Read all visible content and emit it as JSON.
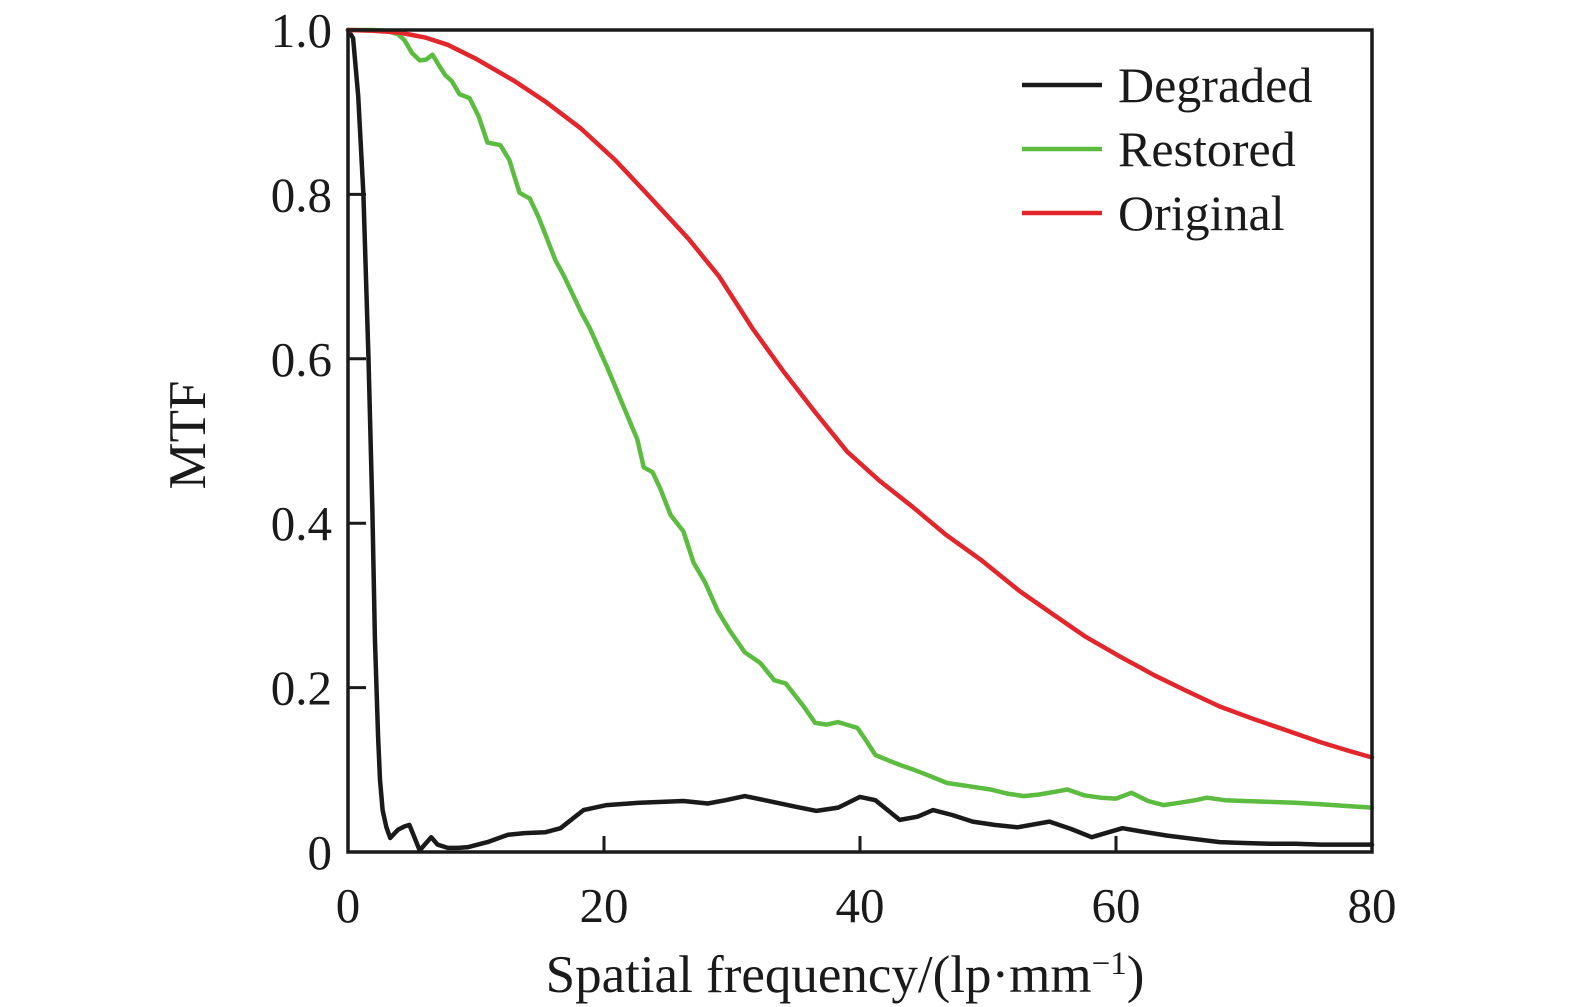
{
  "figure": {
    "background": "#ffffff",
    "axis_color": "#1a1a1a"
  },
  "chart_data": {
    "type": "line",
    "title": "",
    "xlabel": "Spatial frequency/(lp·mm⁻¹)",
    "xlabel_parts": {
      "main": "Spatial frequency/(lp·mm",
      "sup": "−1",
      "close": ")"
    },
    "ylabel": "MTF",
    "xlim": [
      0,
      80
    ],
    "ylim": [
      0,
      1.0
    ],
    "xticks": [
      0,
      20,
      40,
      60,
      80
    ],
    "xtick_labels": [
      "0",
      "20",
      "40",
      "60",
      "80"
    ],
    "yticks": [
      0,
      0.2,
      0.4,
      0.6,
      0.8,
      1.0
    ],
    "ytick_labels": [
      "0",
      "0.2",
      "0.4",
      "0.6",
      "0.8",
      "1.0"
    ],
    "grid": false,
    "legend_position": "top-right",
    "series": [
      {
        "name": "Degraded",
        "color": "#1a1a1a",
        "points": [
          [
            0,
            1.0
          ],
          [
            0.4,
            0.99
          ],
          [
            0.8,
            0.92
          ],
          [
            1.2,
            0.8
          ],
          [
            1.6,
            0.6
          ],
          [
            1.9,
            0.42
          ],
          [
            2.1,
            0.26
          ],
          [
            2.35,
            0.14
          ],
          [
            2.5,
            0.088
          ],
          [
            2.7,
            0.051
          ],
          [
            3.0,
            0.03
          ],
          [
            3.3,
            0.017
          ],
          [
            3.9,
            0.027
          ],
          [
            4.4,
            0.031
          ],
          [
            4.8,
            0.033
          ],
          [
            5.6,
            0.002
          ],
          [
            6.5,
            0.018
          ],
          [
            7.0,
            0.009
          ],
          [
            7.8,
            0.005
          ],
          [
            8.6,
            0.005
          ],
          [
            9.4,
            0.006
          ],
          [
            10.9,
            0.012
          ],
          [
            12.5,
            0.021
          ],
          [
            13.8,
            0.023
          ],
          [
            15.4,
            0.024
          ],
          [
            16.6,
            0.029
          ],
          [
            18.4,
            0.051
          ],
          [
            20.2,
            0.057
          ],
          [
            22.8,
            0.06
          ],
          [
            24.5,
            0.061
          ],
          [
            26.2,
            0.062
          ],
          [
            28.1,
            0.059
          ],
          [
            29.5,
            0.063
          ],
          [
            31.0,
            0.068
          ],
          [
            33.2,
            0.061
          ],
          [
            35.0,
            0.055
          ],
          [
            36.6,
            0.05
          ],
          [
            38.3,
            0.054
          ],
          [
            40.0,
            0.067
          ],
          [
            41.2,
            0.063
          ],
          [
            43.1,
            0.039
          ],
          [
            44.5,
            0.043
          ],
          [
            45.7,
            0.051
          ],
          [
            47.2,
            0.045
          ],
          [
            48.8,
            0.037
          ],
          [
            50.5,
            0.033
          ],
          [
            52.3,
            0.03
          ],
          [
            54.8,
            0.037
          ],
          [
            56.5,
            0.028
          ],
          [
            58.1,
            0.018
          ],
          [
            60.5,
            0.029
          ],
          [
            62.0,
            0.025
          ],
          [
            64.0,
            0.02
          ],
          [
            66.0,
            0.016
          ],
          [
            68.1,
            0.012
          ],
          [
            70.0,
            0.011
          ],
          [
            72.0,
            0.01
          ],
          [
            74.0,
            0.01
          ],
          [
            76.0,
            0.009
          ],
          [
            78.0,
            0.009
          ],
          [
            80.0,
            0.009
          ]
        ]
      },
      {
        "name": "Restored",
        "color": "#5bbc3f",
        "points": [
          [
            0,
            1.0
          ],
          [
            2.0,
            1.0
          ],
          [
            3.0,
            0.999
          ],
          [
            3.9,
            0.995
          ],
          [
            4.4,
            0.988
          ],
          [
            5.0,
            0.972
          ],
          [
            5.6,
            0.963
          ],
          [
            6.1,
            0.964
          ],
          [
            6.6,
            0.97
          ],
          [
            7.1,
            0.957
          ],
          [
            7.6,
            0.945
          ],
          [
            8.1,
            0.938
          ],
          [
            8.7,
            0.922
          ],
          [
            9.5,
            0.917
          ],
          [
            10.2,
            0.895
          ],
          [
            10.9,
            0.863
          ],
          [
            11.9,
            0.86
          ],
          [
            12.6,
            0.842
          ],
          [
            13.4,
            0.802
          ],
          [
            14.2,
            0.795
          ],
          [
            14.9,
            0.772
          ],
          [
            16.2,
            0.72
          ],
          [
            16.9,
            0.7
          ],
          [
            18.2,
            0.657
          ],
          [
            18.9,
            0.637
          ],
          [
            20.3,
            0.588
          ],
          [
            21.5,
            0.543
          ],
          [
            22.6,
            0.502
          ],
          [
            23.1,
            0.468
          ],
          [
            23.8,
            0.462
          ],
          [
            24.4,
            0.442
          ],
          [
            25.2,
            0.41
          ],
          [
            26.2,
            0.39
          ],
          [
            27.0,
            0.352
          ],
          [
            27.9,
            0.328
          ],
          [
            28.9,
            0.293
          ],
          [
            29.8,
            0.27
          ],
          [
            31.0,
            0.243
          ],
          [
            32.2,
            0.23
          ],
          [
            33.3,
            0.209
          ],
          [
            34.2,
            0.205
          ],
          [
            35.6,
            0.177
          ],
          [
            36.5,
            0.157
          ],
          [
            37.4,
            0.155
          ],
          [
            38.3,
            0.158
          ],
          [
            39.8,
            0.151
          ],
          [
            40.5,
            0.135
          ],
          [
            41.2,
            0.118
          ],
          [
            42.3,
            0.111
          ],
          [
            43.1,
            0.106
          ],
          [
            44.2,
            0.1
          ],
          [
            45.2,
            0.094
          ],
          [
            46.8,
            0.084
          ],
          [
            48.5,
            0.08
          ],
          [
            50.2,
            0.076
          ],
          [
            51.5,
            0.071
          ],
          [
            52.8,
            0.068
          ],
          [
            54.0,
            0.07
          ],
          [
            55.5,
            0.074
          ],
          [
            56.2,
            0.076
          ],
          [
            57.5,
            0.069
          ],
          [
            58.8,
            0.066
          ],
          [
            60.0,
            0.065
          ],
          [
            61.2,
            0.072
          ],
          [
            62.5,
            0.062
          ],
          [
            63.7,
            0.057
          ],
          [
            65.0,
            0.06
          ],
          [
            66.2,
            0.063
          ],
          [
            67.1,
            0.066
          ],
          [
            68.5,
            0.063
          ],
          [
            70.0,
            0.062
          ],
          [
            72.0,
            0.061
          ],
          [
            74.0,
            0.06
          ],
          [
            76.0,
            0.058
          ],
          [
            78.0,
            0.056
          ],
          [
            80.0,
            0.054
          ]
        ]
      },
      {
        "name": "Original",
        "color": "#e2262b",
        "points": [
          [
            0,
            1.0
          ],
          [
            2.0,
            0.999
          ],
          [
            4.0,
            0.997
          ],
          [
            6.0,
            0.991
          ],
          [
            7.8,
            0.982
          ],
          [
            10.0,
            0.965
          ],
          [
            13.0,
            0.938
          ],
          [
            15.5,
            0.912
          ],
          [
            18.2,
            0.88
          ],
          [
            20.8,
            0.843
          ],
          [
            23.4,
            0.8
          ],
          [
            26.6,
            0.746
          ],
          [
            29.0,
            0.7
          ],
          [
            31.6,
            0.637
          ],
          [
            34.0,
            0.585
          ],
          [
            36.5,
            0.535
          ],
          [
            39.0,
            0.487
          ],
          [
            41.5,
            0.452
          ],
          [
            44.1,
            0.42
          ],
          [
            46.7,
            0.386
          ],
          [
            49.4,
            0.356
          ],
          [
            52.5,
            0.317
          ],
          [
            55.0,
            0.29
          ],
          [
            57.6,
            0.262
          ],
          [
            60.3,
            0.238
          ],
          [
            63.0,
            0.215
          ],
          [
            65.5,
            0.196
          ],
          [
            68.1,
            0.177
          ],
          [
            70.7,
            0.162
          ],
          [
            73.3,
            0.148
          ],
          [
            75.9,
            0.134
          ],
          [
            78.0,
            0.124
          ],
          [
            80.0,
            0.115
          ]
        ]
      }
    ]
  }
}
